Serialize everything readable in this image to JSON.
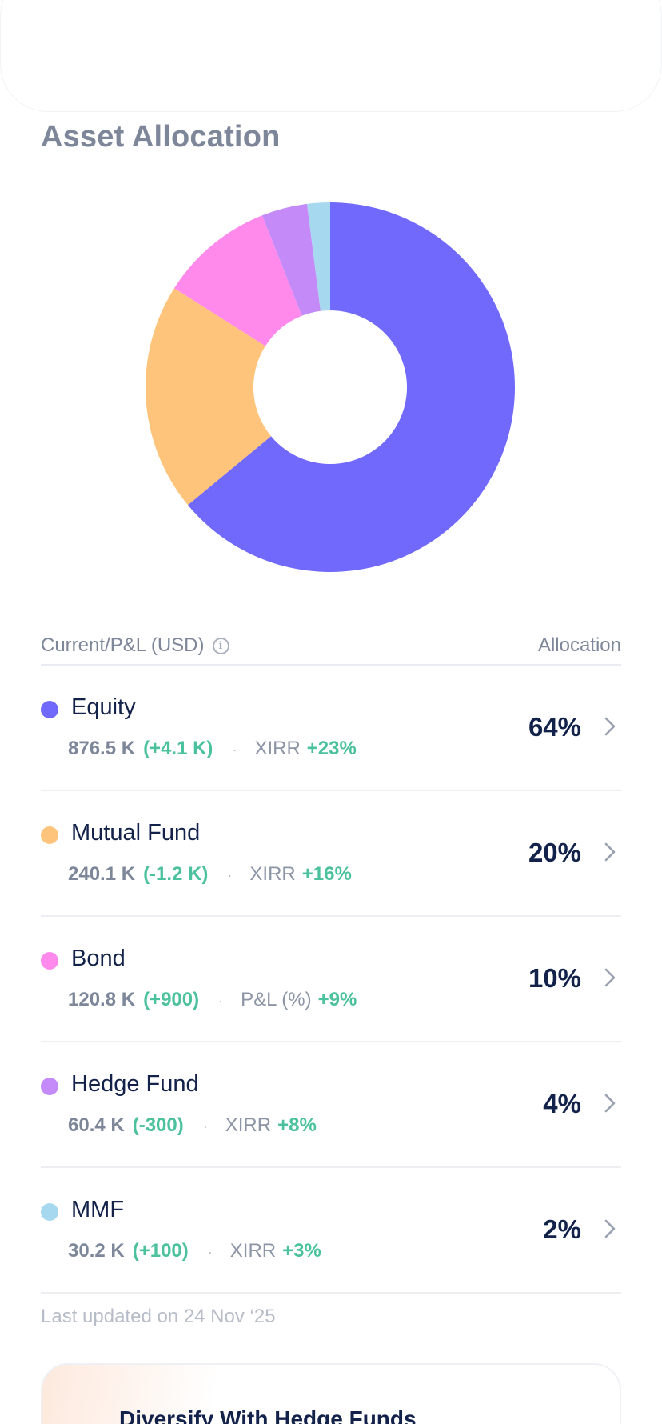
{
  "section": {
    "title": "Asset Allocation"
  },
  "colors": {
    "equity": "#7069fb",
    "mutual_fund": "#fec47b",
    "bond": "#ff8aec",
    "hedge_fund": "#c38af8",
    "mmf": "#a6d8ef",
    "positive": "#4cc19d"
  },
  "chart_data": {
    "type": "pie",
    "categories": [
      "Equity",
      "Mutual Fund",
      "Bond",
      "Hedge Fund",
      "MMF"
    ],
    "values": [
      64,
      20,
      10,
      4,
      2
    ],
    "colors": [
      "#7069fb",
      "#fec47b",
      "#ff8aec",
      "#c38af8",
      "#a6d8ef"
    ],
    "donut": true,
    "title": ""
  },
  "table": {
    "header_left": "Current/P&L (USD)",
    "header_right": "Allocation",
    "info_icon": "info-icon",
    "rows": [
      {
        "name": "Equity",
        "amount": "876.5 K",
        "change": "(+4.1 K)",
        "separator": "·",
        "metric_label": "XIRR",
        "metric_value": "+23%",
        "allocation": "64%",
        "color": "#7069fb"
      },
      {
        "name": "Mutual Fund",
        "amount": "240.1 K",
        "change": "(-1.2 K)",
        "separator": "·",
        "metric_label": "XIRR",
        "metric_value": "+16%",
        "allocation": "20%",
        "color": "#fec47b"
      },
      {
        "name": "Bond",
        "amount": "120.8 K",
        "change": "(+900)",
        "separator": "·",
        "metric_label": "P&L (%)",
        "metric_value": "+9%",
        "allocation": "10%",
        "color": "#ff8aec"
      },
      {
        "name": "Hedge Fund",
        "amount": "60.4 K",
        "change": "(-300)",
        "separator": "·",
        "metric_label": "XIRR",
        "metric_value": "+8%",
        "allocation": "4%",
        "color": "#c38af8"
      },
      {
        "name": "MMF",
        "amount": "30.2 K",
        "change": "(+100)",
        "separator": "·",
        "metric_label": "XIRR",
        "metric_value": "+3%",
        "allocation": "2%",
        "color": "#a6d8ef"
      }
    ]
  },
  "footer": {
    "last_updated": "Last updated on 24 Nov ‘25"
  },
  "promo": {
    "title": "Diversify With Hedge Funds"
  }
}
